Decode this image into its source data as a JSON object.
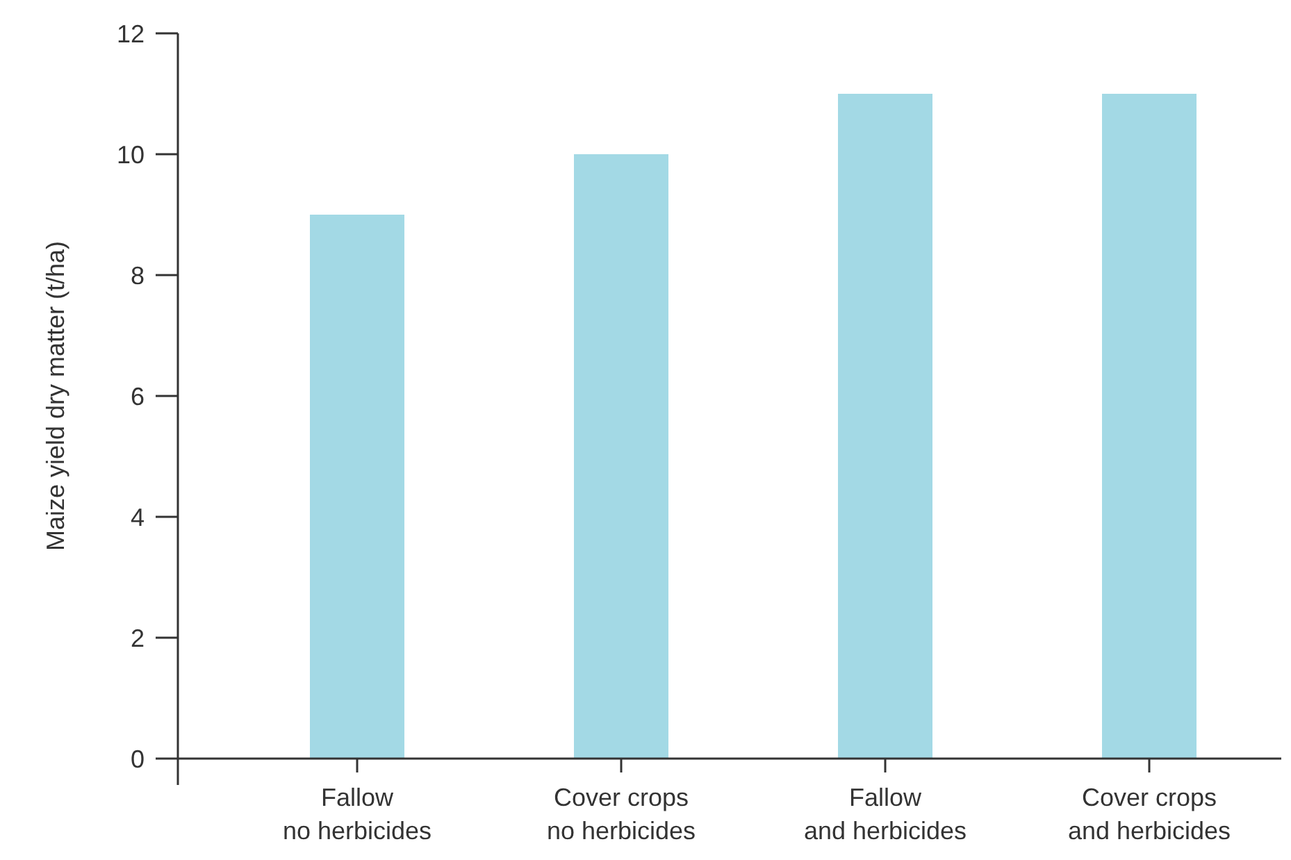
{
  "chart_data": {
    "type": "bar",
    "ylabel": "Maize yield dry matter (t/ha)",
    "categories": [
      "Fallow\nno herbicides",
      "Cover crops\nno herbicides",
      "Fallow\nand herbicides",
      "Cover crops\nand herbicides"
    ],
    "values": [
      9,
      10,
      11,
      11
    ],
    "color": "#a3d9e5",
    "ylim": [
      0,
      12
    ],
    "yticks": [
      0,
      2,
      4,
      6,
      8,
      10,
      12
    ],
    "grid": false
  }
}
